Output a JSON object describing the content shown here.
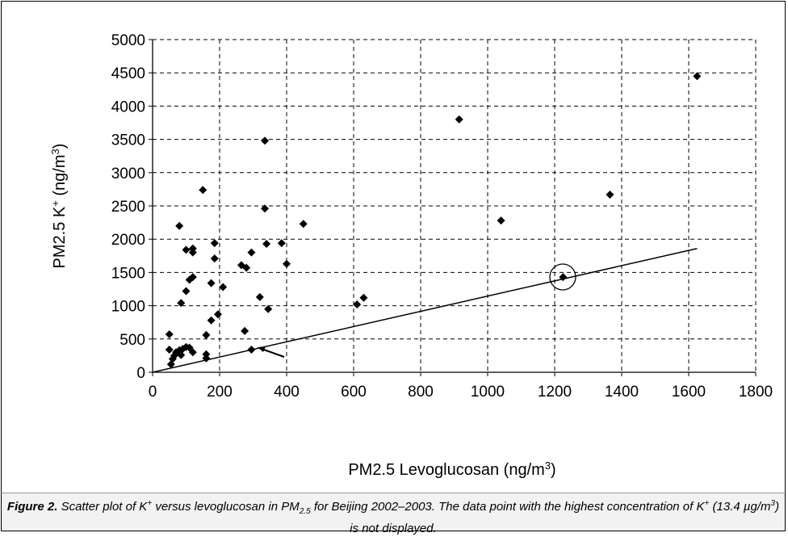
{
  "chart_data": {
    "type": "scatter",
    "x_label": [
      {
        "text": "PM2.5 Levoglucosan (ng/m"
      },
      {
        "sup": "3"
      },
      {
        "text": ")"
      }
    ],
    "y_label": [
      {
        "text": "PM2.5 K"
      },
      {
        "sup": "+"
      },
      {
        "text": " (ng/m"
      },
      {
        "sup": "3"
      },
      {
        "text": ")"
      }
    ],
    "caption": [
      {
        "bold": "Figure 2."
      },
      {
        "text": " Scatter plot of K"
      },
      {
        "sup": "+"
      },
      {
        "text": " versus levoglucosan in PM"
      },
      {
        "sub": "2.5"
      },
      {
        "text": " for Beijing 2002–2003. The data point with the highest concentration of K"
      },
      {
        "sup": "+"
      },
      {
        "text": " (13.4 µg/m"
      },
      {
        "sup": "3"
      },
      {
        "text": ") is not displayed."
      }
    ],
    "xlim": [
      0,
      1800
    ],
    "xticks": [
      0,
      200,
      400,
      600,
      800,
      1000,
      1200,
      1400,
      1600,
      1800
    ],
    "ylim": [
      0,
      5000
    ],
    "yticks": [
      0,
      500,
      1000,
      1500,
      2000,
      2500,
      3000,
      3500,
      4000,
      4500,
      5000
    ],
    "grid": true,
    "color": "#000000",
    "x": [
      50,
      50,
      55,
      60,
      65,
      70,
      80,
      85,
      90,
      100,
      110,
      120,
      85,
      100,
      110,
      120,
      100,
      120,
      120,
      80,
      150,
      160,
      160,
      160,
      175,
      175,
      185,
      185,
      195,
      210,
      265,
      280,
      295,
      275,
      295,
      320,
      335,
      335,
      340,
      345,
      385,
      400,
      450,
      610,
      630,
      915,
      1040,
      1225,
      1365,
      1625
    ],
    "y": [
      570,
      340,
      120,
      200,
      250,
      300,
      330,
      260,
      350,
      380,
      370,
      300,
      1040,
      1220,
      1390,
      1430,
      1840,
      1800,
      1860,
      2200,
      2740,
      210,
      270,
      560,
      780,
      1340,
      1940,
      1710,
      870,
      1280,
      1610,
      1570,
      1800,
      620,
      340,
      1130,
      3480,
      2460,
      1930,
      950,
      1940,
      1630,
      2230,
      1020,
      1120,
      3800,
      2280,
      1430,
      2670,
      4450
    ],
    "reference_line": {
      "x": [
        0,
        1625
      ],
      "y": [
        0,
        1860
      ]
    }
  }
}
